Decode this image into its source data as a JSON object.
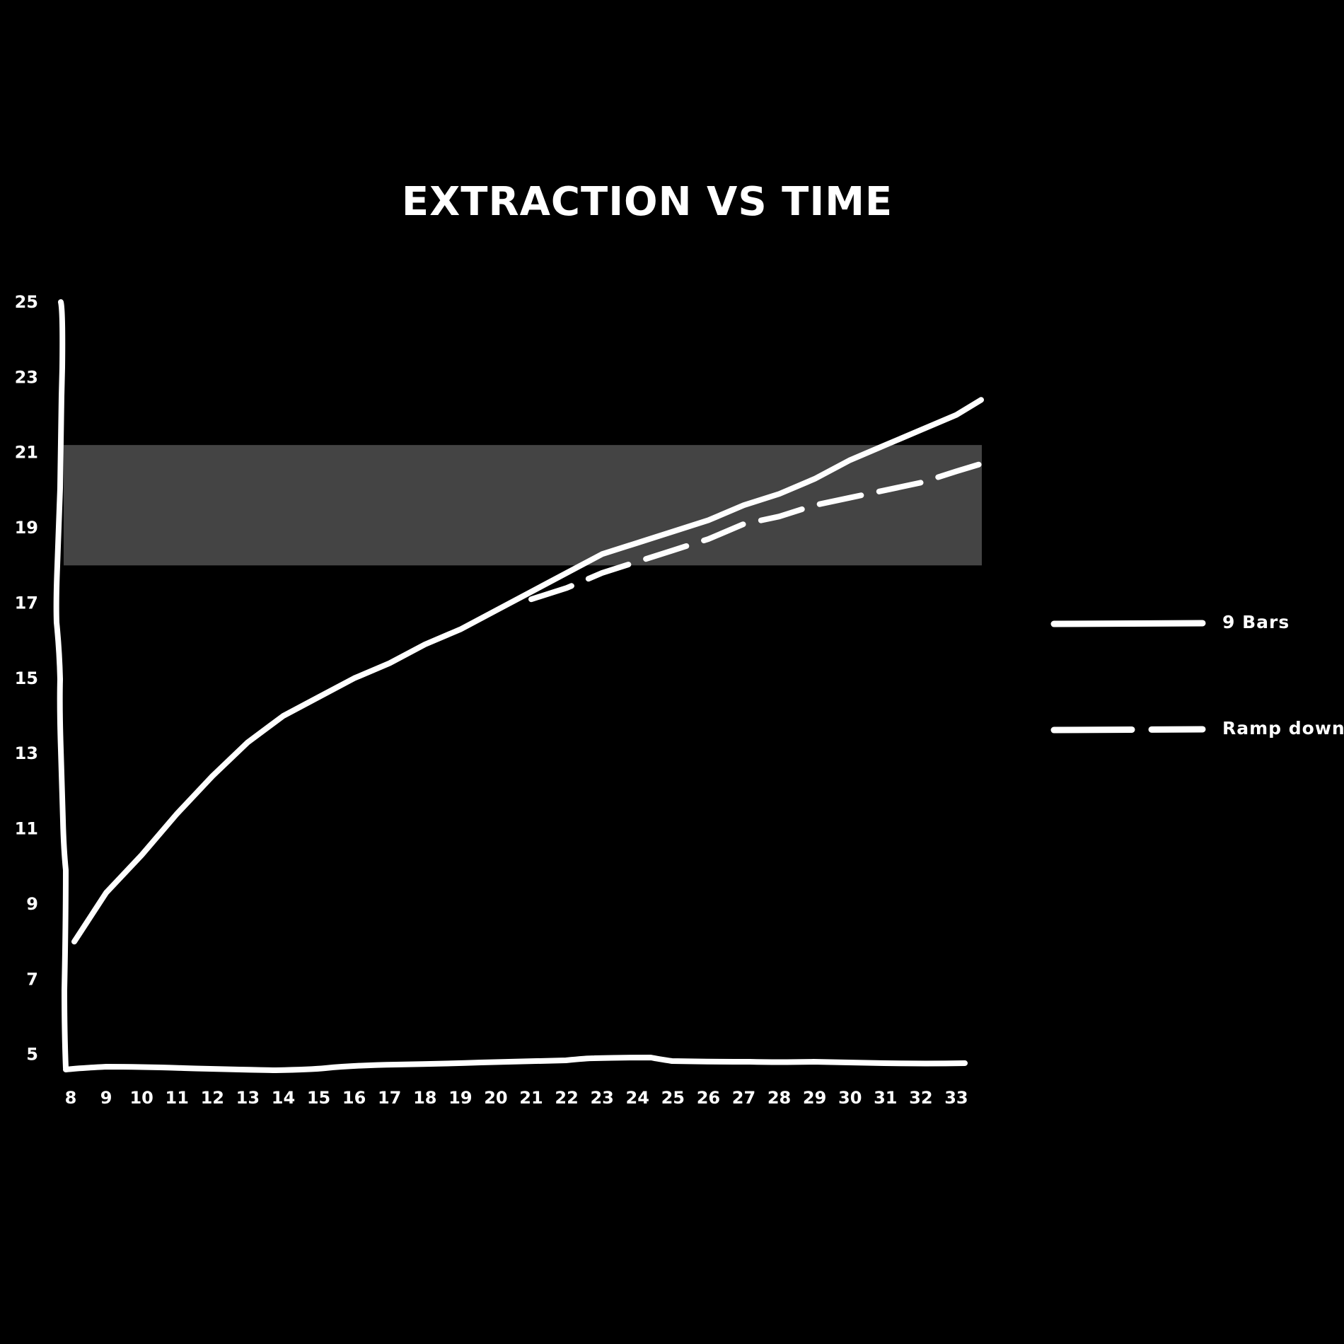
{
  "chart_data": {
    "type": "line",
    "title": "EXTRACTION VS TIME",
    "xlabel": "",
    "ylabel": "",
    "x": [
      8,
      9,
      10,
      11,
      12,
      13,
      14,
      15,
      16,
      17,
      18,
      19,
      20,
      21,
      22,
      23,
      24,
      25,
      26,
      27,
      28,
      29,
      30,
      31,
      32,
      33
    ],
    "xlim": [
      8,
      33.7
    ],
    "ylim": [
      4.6,
      25
    ],
    "x_tick_labels": [
      "8",
      "9",
      "10",
      "11",
      "12",
      "13",
      "14",
      "15",
      "16",
      "17",
      "18",
      "19",
      "20",
      "21",
      "22",
      "23",
      "24",
      "25",
      "26",
      "27",
      "28",
      "29",
      "30",
      "31",
      "32",
      "33"
    ],
    "y_tick_labels": [
      "25",
      "23",
      "21",
      "19",
      "17",
      "15",
      "13",
      "11",
      "9",
      "7",
      "5"
    ],
    "y_ticks": [
      25,
      23,
      21,
      19,
      17,
      15,
      13,
      11,
      9,
      7,
      5
    ],
    "target_band": {
      "ymin": 18,
      "ymax": 21.2,
      "color": "#444444"
    },
    "grid": false,
    "legend_position": "right",
    "series": [
      {
        "name": "9 Bars",
        "style": "solid",
        "x": [
          8.1,
          9,
          10,
          11,
          12,
          13,
          14,
          15,
          16,
          17,
          18,
          19,
          20,
          21,
          22,
          23,
          24,
          25,
          26,
          27,
          28,
          29,
          30,
          31,
          32,
          33,
          33.7
        ],
        "values": [
          8.0,
          9.3,
          10.3,
          11.4,
          12.4,
          13.3,
          14.0,
          14.5,
          15.0,
          15.4,
          15.9,
          16.3,
          16.8,
          17.3,
          17.8,
          18.3,
          18.6,
          18.9,
          19.2,
          19.6,
          19.9,
          20.3,
          20.8,
          21.2,
          21.6,
          22.0,
          22.4
        ]
      },
      {
        "name": "Ramp down",
        "style": "dashed",
        "x": [
          8.1,
          9,
          10,
          11,
          12,
          13,
          14,
          15,
          16,
          17,
          18,
          19,
          20,
          21,
          22,
          23,
          24,
          25,
          26,
          27,
          28,
          29,
          30,
          31,
          32,
          33,
          33.7
        ],
        "values": [
          8.0,
          9.3,
          10.3,
          11.4,
          12.4,
          13.3,
          14.0,
          14.5,
          15.0,
          15.4,
          15.9,
          16.3,
          16.8,
          17.1,
          17.4,
          17.8,
          18.1,
          18.4,
          18.7,
          19.1,
          19.3,
          19.6,
          19.8,
          20.0,
          20.2,
          20.5,
          20.7
        ]
      }
    ]
  }
}
